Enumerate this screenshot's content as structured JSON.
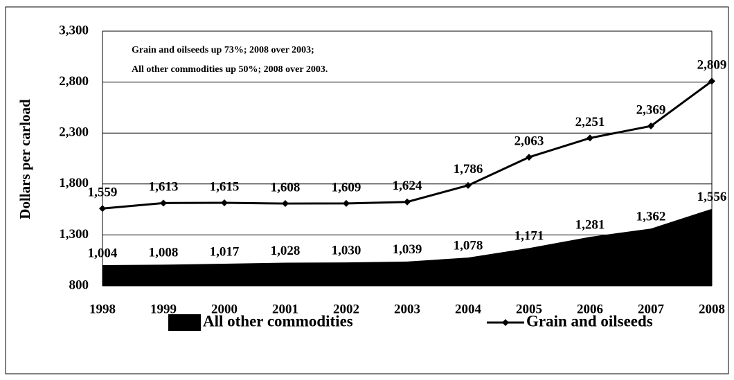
{
  "chart_data": {
    "type": "line",
    "ylabel": "Dollars per carload",
    "annotations": [
      "Grain and oilseeds up 73%; 2008 over 2003;",
      "All other commodities up 50%; 2008 over 2003."
    ],
    "categories": [
      "1998",
      "1999",
      "2000",
      "2001",
      "2002",
      "2003",
      "2004",
      "2005",
      "2006",
      "2007",
      "2008"
    ],
    "ylim": [
      800,
      3300
    ],
    "yticks": [
      {
        "value": 800,
        "label": "800"
      },
      {
        "value": 1300,
        "label": "1,300"
      },
      {
        "value": 1800,
        "label": "1,800"
      },
      {
        "value": 2300,
        "label": "2,300"
      },
      {
        "value": 2800,
        "label": "2,800"
      },
      {
        "value": 3300,
        "label": "3,300"
      }
    ],
    "grid": true,
    "series": [
      {
        "name": "All other commodities",
        "type": "area",
        "color": "#000000",
        "values": [
          1004,
          1008,
          1017,
          1028,
          1030,
          1039,
          1078,
          1171,
          1281,
          1362,
          1556
        ],
        "value_labels": [
          "1,004",
          "1,008",
          "1,017",
          "1,028",
          "1,030",
          "1,039",
          "1,078",
          "1,171",
          "1,281",
          "1,362",
          "1,556"
        ]
      },
      {
        "name": "Grain and oilseeds",
        "type": "line",
        "color": "#000000",
        "values": [
          1559,
          1613,
          1615,
          1608,
          1609,
          1624,
          1786,
          2063,
          2251,
          2369,
          2809
        ],
        "value_labels": [
          "1,559",
          "1,613",
          "1,615",
          "1,608",
          "1,609",
          "1,624",
          "1,786",
          "2,063",
          "2,251",
          "2,369",
          "2,809"
        ]
      }
    ]
  }
}
